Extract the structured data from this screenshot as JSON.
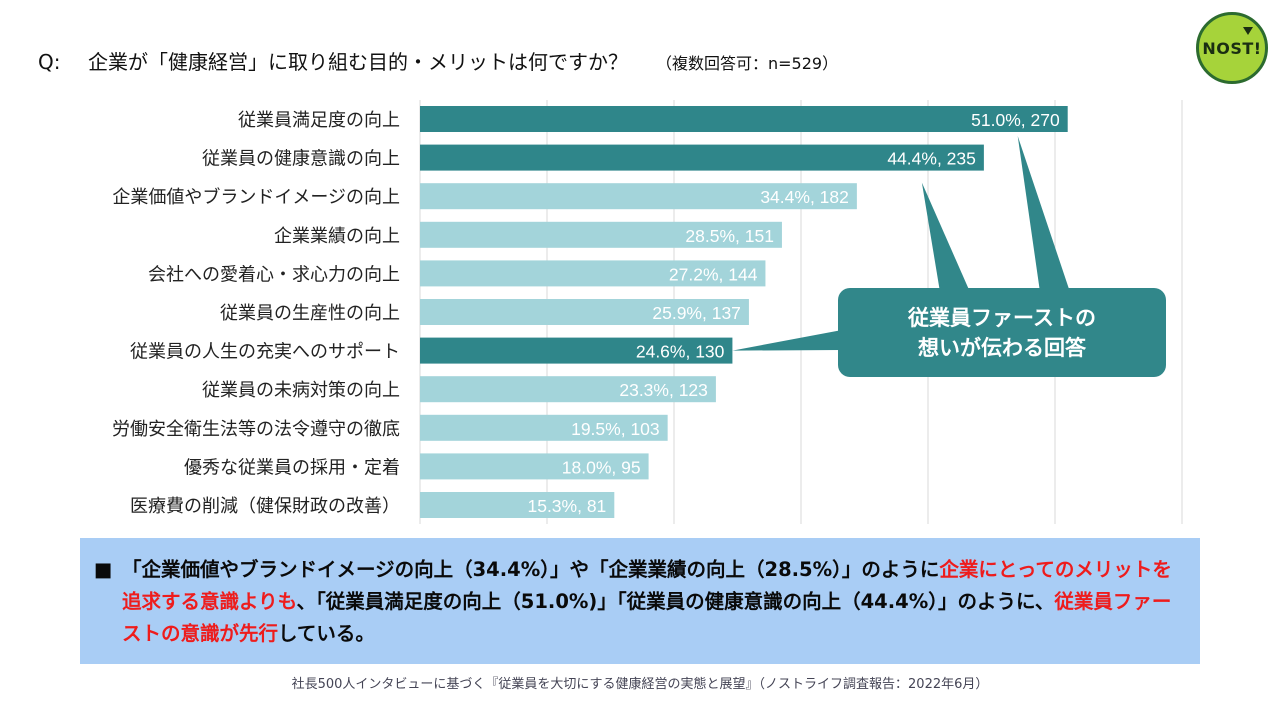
{
  "question": {
    "prefix": "Q:",
    "text": "企業が「健康経営」に取り組む目的・メリットは何ですか？",
    "note": "（複数回答可：n=529）"
  },
  "logo": {
    "text": "NOST!"
  },
  "chart_data": {
    "type": "bar",
    "orientation": "horizontal",
    "categories": [
      "従業員満足度の向上",
      "従業員の健康意識の向上",
      "企業価値やブランドイメージの向上",
      "企業業績の向上",
      "会社への愛着心・求心力の向上",
      "従業員の生産性の向上",
      "従業員の人生の充実へのサポート",
      "従業員の未病対策の向上",
      "労働安全衛生法等の法令遵守の徹底",
      "優秀な従業員の採用・定着",
      "医療費の削減（健保財政の改善）"
    ],
    "values": [
      51.0,
      44.4,
      34.4,
      28.5,
      27.2,
      25.9,
      24.6,
      23.3,
      19.5,
      18.0,
      15.3
    ],
    "counts": [
      270,
      235,
      182,
      151,
      144,
      137,
      130,
      123,
      103,
      95,
      81
    ],
    "data_labels": [
      "51.0%, 270",
      "44.4%, 235",
      "34.4%, 182",
      "28.5%, 151",
      "27.2%, 144",
      "25.9%, 137",
      "24.6%, 130",
      "23.3%, 123",
      "19.5%, 103",
      "18.0%, 95",
      "15.3%, 81"
    ],
    "highlighted": [
      true,
      true,
      false,
      false,
      false,
      false,
      true,
      false,
      false,
      false,
      false
    ],
    "xlim": [
      0,
      60
    ],
    "grid": true,
    "colors": {
      "highlight": "#2f868a",
      "normal": "#a3d4da",
      "grid": "#d9d9d9"
    }
  },
  "callout": {
    "line1": "従業員ファーストの",
    "line2": "想いが伝わる回答",
    "color": "#31878a"
  },
  "summary": {
    "bullet": "■",
    "part1": "「企業価値やブランドイメージの向上（34.4%）」や「企業業績の向上（28.5%）」のように",
    "part2_red": "企業にとってのメリットを追求する意識よりも",
    "part3": "、「従業員満足度の向上（51.0%)」「従業員の健康意識の向上（44.4%）」のように、",
    "part4_red": "従業員ファーストの意識が先行",
    "part5": "している。"
  },
  "source": "社長500人インタビューに基づく『従業員を大切にする健康経営の実態と展望』（ノストライフ調査報告：2022年6月）"
}
